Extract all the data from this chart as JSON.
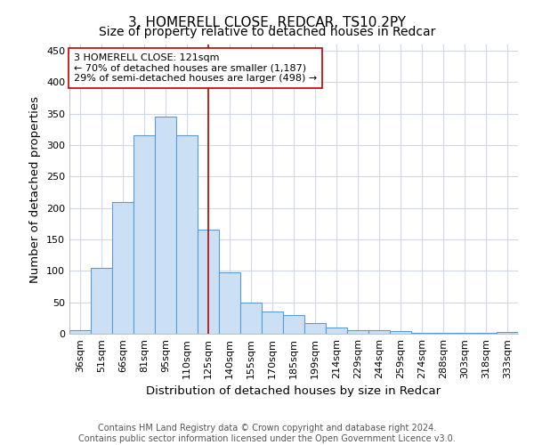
{
  "title": "3, HOMERELL CLOSE, REDCAR, TS10 2PY",
  "subtitle": "Size of property relative to detached houses in Redcar",
  "xlabel": "Distribution of detached houses by size in Redcar",
  "ylabel": "Number of detached properties",
  "footer_line1": "Contains HM Land Registry data © Crown copyright and database right 2024.",
  "footer_line2": "Contains public sector information licensed under the Open Government Licence v3.0.",
  "categories": [
    "36sqm",
    "51sqm",
    "66sqm",
    "81sqm",
    "95sqm",
    "110sqm",
    "125sqm",
    "140sqm",
    "155sqm",
    "170sqm",
    "185sqm",
    "199sqm",
    "214sqm",
    "229sqm",
    "244sqm",
    "259sqm",
    "274sqm",
    "288sqm",
    "303sqm",
    "318sqm",
    "333sqm"
  ],
  "values": [
    6,
    105,
    210,
    315,
    345,
    315,
    165,
    97,
    50,
    35,
    30,
    17,
    10,
    5,
    5,
    4,
    1,
    1,
    1,
    1,
    3
  ],
  "bar_color": "#cce0f5",
  "bar_edge_color": "#5b9bd5",
  "vline_x_index": 6,
  "vline_color": "#c00000",
  "annotation_text": "3 HOMERELL CLOSE: 121sqm\n← 70% of detached houses are smaller (1,187)\n29% of semi-detached houses are larger (498) →",
  "annotation_box_color": "#ffffff",
  "annotation_box_edge_color": "#c00000",
  "ylim": [
    0,
    460
  ],
  "background_color": "#ffffff",
  "grid_color": "#d0d8e8",
  "title_fontsize": 11,
  "subtitle_fontsize": 10,
  "axis_fontsize": 9.5,
  "tick_fontsize": 8,
  "footer_fontsize": 7,
  "annotation_fontsize": 8
}
